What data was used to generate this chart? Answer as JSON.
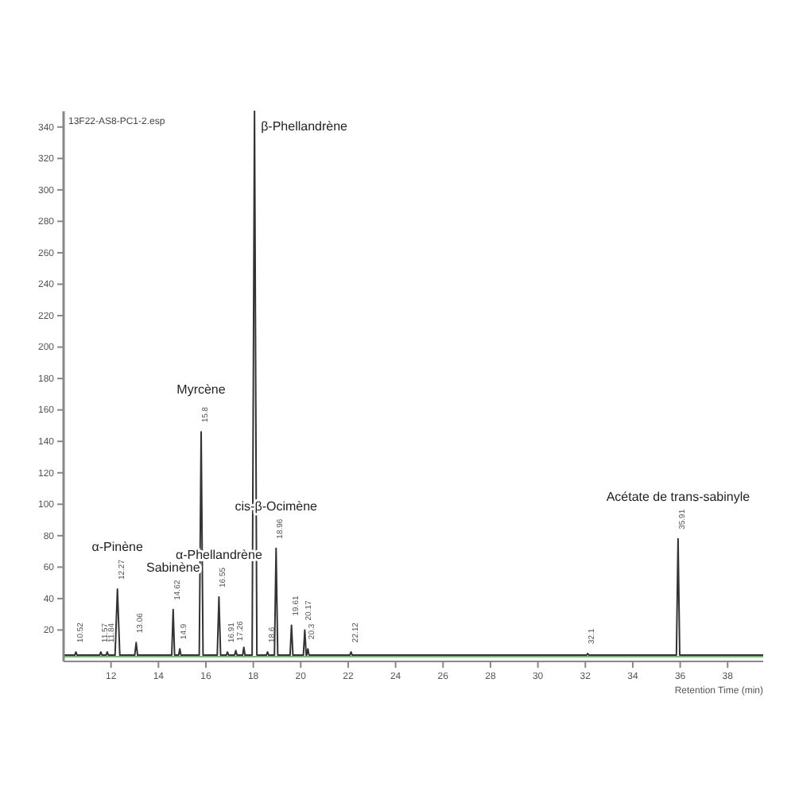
{
  "chart_data": {
    "type": "line",
    "xlabel": "Retention Time (min)",
    "xlim": [
      10,
      39.5
    ],
    "ylim": [
      0,
      350
    ],
    "xticks": [
      12,
      14,
      16,
      18,
      20,
      22,
      24,
      26,
      28,
      30,
      32,
      34,
      36,
      38
    ],
    "yticks": [
      20,
      40,
      60,
      80,
      100,
      120,
      140,
      160,
      180,
      200,
      220,
      240,
      260,
      280,
      300,
      320,
      340
    ],
    "grid": false,
    "series": [
      {
        "color": "#7fb27f",
        "x": [
          10,
          39.5
        ],
        "values": [
          3,
          3
        ]
      },
      {
        "color": "#333333",
        "x": [
          10,
          10.47,
          10.52,
          10.57,
          11.52,
          11.57,
          11.62,
          11.79,
          11.84,
          11.89,
          12.17,
          12.27,
          12.37,
          13.0,
          13.06,
          13.12,
          14.56,
          14.62,
          14.68,
          14.85,
          14.9,
          14.95,
          15.72,
          15.8,
          15.88,
          16.48,
          16.55,
          16.62,
          16.86,
          16.91,
          16.96,
          17.21,
          17.26,
          17.31,
          17.55,
          17.6,
          17.65,
          17.95,
          18.05,
          18.15,
          18.55,
          18.6,
          18.65,
          18.89,
          18.96,
          19.03,
          19.55,
          19.61,
          19.67,
          20.11,
          20.17,
          20.23,
          20.25,
          20.3,
          20.35,
          22.07,
          22.12,
          22.17,
          32.05,
          32.1,
          32.15,
          35.84,
          35.91,
          35.98,
          39.5
        ],
        "values": [
          4,
          4,
          6,
          4,
          4,
          6,
          4,
          4,
          6,
          4,
          4,
          46,
          4,
          4,
          12,
          4,
          4,
          33,
          4,
          4,
          8,
          4,
          4,
          146,
          4,
          4,
          41,
          4,
          4,
          6,
          4,
          4,
          7,
          4,
          4,
          9,
          4,
          4,
          350,
          4,
          4,
          6,
          4,
          4,
          72,
          4,
          4,
          23,
          4,
          4,
          20,
          4,
          4,
          8,
          4,
          4,
          6,
          4,
          4,
          5,
          4,
          4,
          78,
          4,
          4
        ]
      }
    ],
    "annotations": [
      "13F22-AS8-PC1-2.esp",
      {
        "text": "α-Pinène",
        "x": 12.27,
        "y": 46
      },
      {
        "text": "Sabinène",
        "x": 14.62,
        "y": 33
      },
      {
        "text": "Myrcène",
        "x": 15.8,
        "y": 146
      },
      {
        "text": "α-Phellandrène",
        "x": 16.55,
        "y": 41
      },
      {
        "text": "β-Phellandrène",
        "x": 18.05,
        "y": 350
      },
      {
        "text": "cis-β-Ocimène",
        "x": 18.96,
        "y": 72
      },
      {
        "text": "Acétate de trans-sabinyle",
        "x": 35.91,
        "y": 78
      },
      {
        "text": "10.52",
        "x": 10.52,
        "y": 6
      },
      {
        "text": "11.57",
        "x": 11.57,
        "y": 6
      },
      {
        "text": "11.84",
        "x": 11.84,
        "y": 6
      },
      {
        "text": "12.27",
        "x": 12.27,
        "y": 46
      },
      {
        "text": "13.06",
        "x": 13.06,
        "y": 12
      },
      {
        "text": "14.62",
        "x": 14.62,
        "y": 33
      },
      {
        "text": "14.9",
        "x": 14.9,
        "y": 8
      },
      {
        "text": "15.8",
        "x": 15.8,
        "y": 146
      },
      {
        "text": "16.55",
        "x": 16.55,
        "y": 41
      },
      {
        "text": "16.91",
        "x": 16.91,
        "y": 6
      },
      {
        "text": "17.26",
        "x": 17.26,
        "y": 7
      },
      {
        "text": "18.6",
        "x": 18.6,
        "y": 6
      },
      {
        "text": "18.96",
        "x": 18.96,
        "y": 72
      },
      {
        "text": "19.61",
        "x": 19.61,
        "y": 23
      },
      {
        "text": "20.17",
        "x": 20.17,
        "y": 20
      },
      {
        "text": "20.3",
        "x": 20.3,
        "y": 8
      },
      {
        "text": "22.12",
        "x": 22.12,
        "y": 6
      },
      {
        "text": "32.1",
        "x": 32.1,
        "y": 5
      },
      {
        "text": "35.91",
        "x": 35.91,
        "y": 78
      }
    ]
  }
}
